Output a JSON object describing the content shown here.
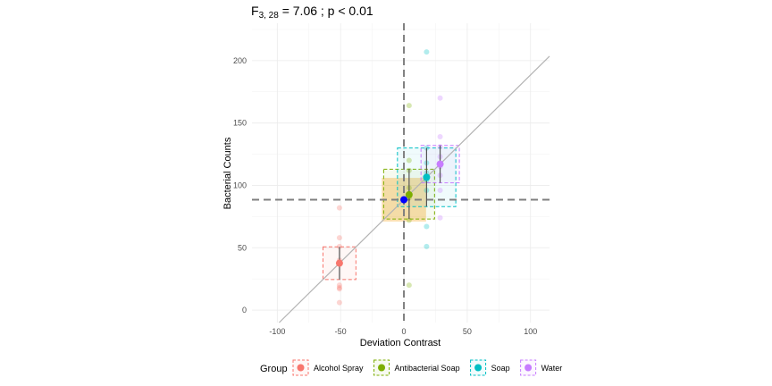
{
  "chart_data": {
    "type": "scatter",
    "title": {
      "prefix": "F",
      "subscript": "3, 28",
      "suffix": " = 7.06 ; p  < 0.01"
    },
    "xlabel": "Deviation Contrast",
    "ylabel": "Bacterial Counts",
    "xlim": [
      -120,
      115
    ],
    "ylim": [
      -10,
      230
    ],
    "x_ticks": [
      -100,
      -50,
      0,
      50,
      100
    ],
    "y_ticks": [
      0,
      50,
      100,
      150,
      200
    ],
    "grid": true,
    "legend_position": "bottom",
    "legend_title": "Group",
    "grand_mean": {
      "x": 0,
      "y": 88.5,
      "color": "#0000FF"
    },
    "reference_line": {
      "intercept": 88.5,
      "slope": 1.0
    },
    "overall_box": {
      "x": [
        -17.5,
        17.5
      ],
      "y": [
        71,
        106
      ],
      "color": "#F5A623"
    },
    "series": [
      {
        "name": "Alcohol Spray",
        "color": "#F8766D",
        "deviation": -50.9,
        "mean": 37.6,
        "ci": [
          24.5,
          50.7
        ],
        "box": {
          "x": [
            -63.9,
            -37.9
          ],
          "y": [
            24.5,
            50.7
          ]
        },
        "points": [
          82,
          58,
          51,
          20,
          18,
          17,
          6,
          40
        ]
      },
      {
        "name": "Antibacterial Soap",
        "color": "#7CAE00",
        "deviation": 4.1,
        "mean": 92.5,
        "ci": [
          73,
          113
        ],
        "box": {
          "x": [
            -16,
            24.2
          ],
          "y": [
            73,
            113
          ]
        },
        "points": [
          164,
          120,
          112,
          98,
          92,
          90,
          72,
          20
        ]
      },
      {
        "name": "Soap",
        "color": "#00BFC4",
        "deviation": 17.9,
        "mean": 106.5,
        "ci": [
          83,
          130
        ],
        "box": {
          "x": [
            -5.1,
            41
          ],
          "y": [
            83,
            130
          ]
        },
        "points": [
          207,
          130,
          118,
          110,
          104,
          96,
          67,
          51
        ]
      },
      {
        "name": "Water",
        "color": "#C77CFF",
        "deviation": 28.6,
        "mean": 117.1,
        "ci": [
          102,
          132
        ],
        "box": {
          "x": [
            13.5,
            43.8
          ],
          "y": [
            102,
            132
          ]
        },
        "points": [
          170,
          139,
          131,
          123,
          115,
          108,
          96,
          74
        ]
      }
    ]
  }
}
